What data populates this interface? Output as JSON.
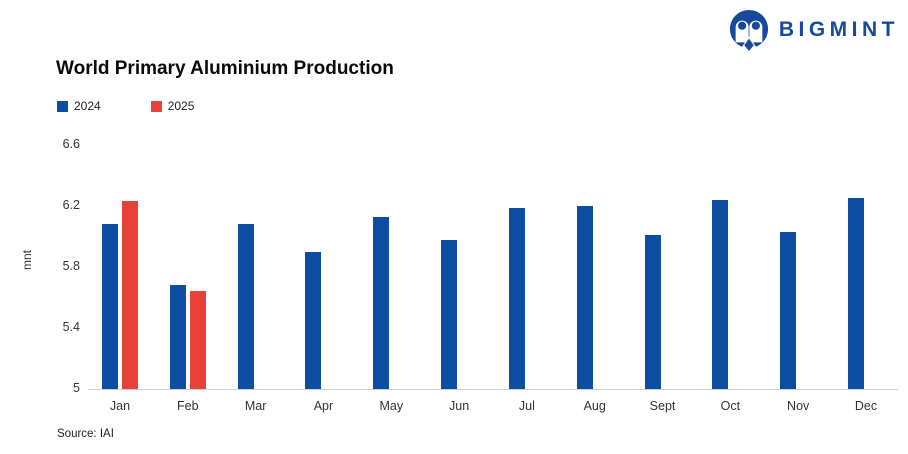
{
  "logo": {
    "text": "BIGMINT",
    "color": "#17499d",
    "icon": "bigmint-owl-icon"
  },
  "title": "World Primary Aluminium Production",
  "source": "Source: IAI",
  "chart_data": {
    "type": "bar",
    "categories": [
      "Jan",
      "Feb",
      "Mar",
      "Apr",
      "May",
      "Jun",
      "Jul",
      "Aug",
      "Sept",
      "Oct",
      "Nov",
      "Dec"
    ],
    "series": [
      {
        "name": "2024",
        "color": "#0d4ea3",
        "values": [
          6.08,
          5.68,
          6.08,
          5.9,
          6.13,
          5.98,
          6.19,
          6.2,
          6.01,
          6.24,
          6.03,
          6.25
        ]
      },
      {
        "name": "2025",
        "color": "#e8413a",
        "values": [
          6.23,
          5.64,
          null,
          null,
          null,
          null,
          null,
          null,
          null,
          null,
          null,
          null
        ]
      }
    ],
    "title": "World Primary Aluminium Production",
    "xlabel": "",
    "ylabel": "mnt",
    "yticks": [
      5,
      5.4,
      5.8,
      6.2,
      6.6
    ],
    "ylim": [
      5,
      6.8
    ],
    "grid": false,
    "legend_position": "top-left"
  }
}
